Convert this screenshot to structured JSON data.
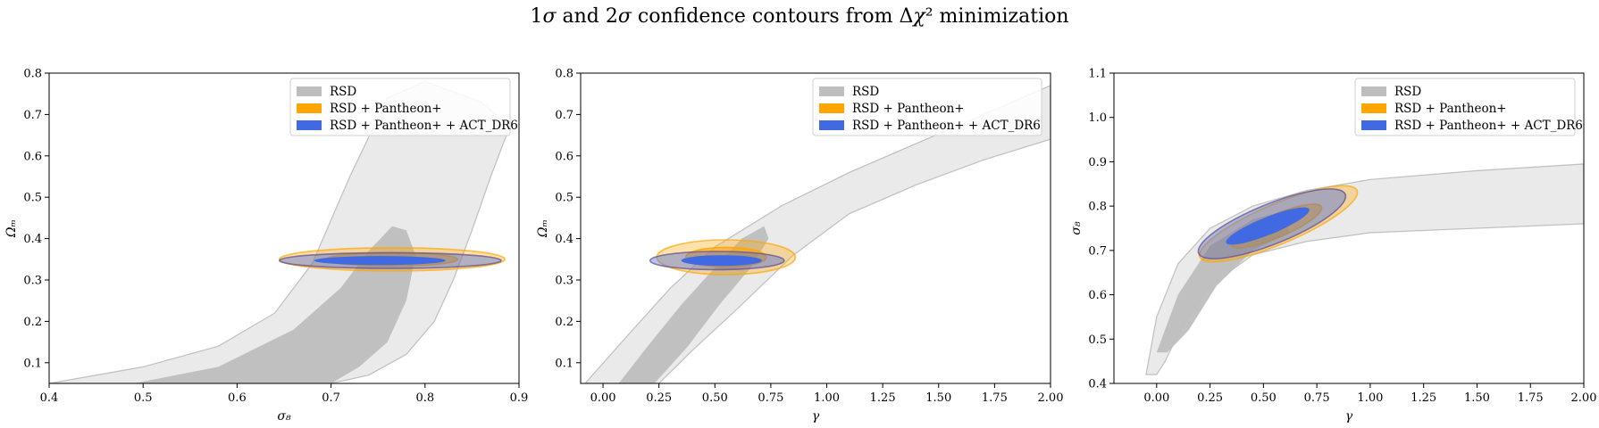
{
  "figure": {
    "title_parts": [
      "1",
      "σ",
      " and 2",
      "σ",
      " confidence contours from Δ",
      "χ",
      "² minimization"
    ]
  },
  "chart_data": [
    {
      "type": "contour",
      "xlabel": "σ₈",
      "ylabel": "Ωₘ",
      "xlim": [
        0.4,
        0.9
      ],
      "ylim": [
        0.05,
        0.8
      ],
      "xticks": [
        "0.4",
        "0.5",
        "0.6",
        "0.7",
        "0.8",
        "0.9"
      ],
      "yticks": [
        "0.1",
        "0.2",
        "0.3",
        "0.4",
        "0.5",
        "0.6",
        "0.7",
        "0.8"
      ],
      "legend": {
        "placement": "upper-right",
        "entries": [
          "RSD",
          "RSD + Pantheon+",
          "RSD + Pantheon+ + ACT_DR6"
        ]
      },
      "series": [
        {
          "name": "RSD",
          "color": "#bebebe",
          "contours": [
            {
              "level": "2sigma",
              "points": [
                [
                  0.4,
                  0.05
                ],
                [
                  0.5,
                  0.09
                ],
                [
                  0.58,
                  0.14
                ],
                [
                  0.64,
                  0.22
                ],
                [
                  0.68,
                  0.34
                ],
                [
                  0.72,
                  0.55
                ],
                [
                  0.76,
                  0.74
                ],
                [
                  0.8,
                  0.78
                ],
                [
                  0.86,
                  0.73
                ],
                [
                  0.89,
                  0.67
                ],
                [
                  0.87,
                  0.55
                ],
                [
                  0.85,
                  0.42
                ],
                [
                  0.83,
                  0.3
                ],
                [
                  0.81,
                  0.2
                ],
                [
                  0.78,
                  0.12
                ],
                [
                  0.74,
                  0.07
                ],
                [
                  0.7,
                  0.05
                ]
              ]
            },
            {
              "level": "1sigma",
              "points": [
                [
                  0.49,
                  0.05
                ],
                [
                  0.58,
                  0.09
                ],
                [
                  0.66,
                  0.18
                ],
                [
                  0.71,
                  0.28
                ],
                [
                  0.74,
                  0.37
                ],
                [
                  0.765,
                  0.43
                ],
                [
                  0.78,
                  0.42
                ],
                [
                  0.79,
                  0.36
                ],
                [
                  0.78,
                  0.25
                ],
                [
                  0.76,
                  0.15
                ],
                [
                  0.73,
                  0.09
                ],
                [
                  0.7,
                  0.05
                ]
              ]
            }
          ]
        },
        {
          "name": "RSD + Pantheon+",
          "color": "#ffa500",
          "ellipses": [
            {
              "level": "2sigma",
              "center": [
                0.765,
                0.35
              ],
              "rx": 0.12,
              "ry": 0.028
            },
            {
              "level": "1sigma",
              "center": [
                0.765,
                0.35
              ],
              "rx": 0.07,
              "ry": 0.016
            }
          ]
        },
        {
          "name": "RSD + Pantheon+ + ACT_DR6",
          "color": "#4169e1",
          "ellipses": [
            {
              "level": "2sigma",
              "center": [
                0.763,
                0.347
              ],
              "rx": 0.118,
              "ry": 0.019
            },
            {
              "level": "1sigma",
              "center": [
                0.752,
                0.347
              ],
              "rx": 0.07,
              "ry": 0.011
            }
          ]
        }
      ]
    },
    {
      "type": "contour",
      "xlabel": "γ",
      "ylabel": "Ωₘ",
      "xlim": [
        -0.1,
        2.0
      ],
      "ylim": [
        0.05,
        0.8
      ],
      "xticks": [
        "0.00",
        "0.25",
        "0.50",
        "0.75",
        "1.00",
        "1.25",
        "1.50",
        "1.75",
        "2.00"
      ],
      "yticks": [
        "0.1",
        "0.2",
        "0.3",
        "0.4",
        "0.5",
        "0.6",
        "0.7",
        "0.8"
      ],
      "legend": {
        "placement": "upper-right",
        "entries": [
          "RSD",
          "RSD + Pantheon+",
          "RSD + Pantheon+ + ACT_DR6"
        ]
      },
      "series": [
        {
          "name": "RSD",
          "color": "#bebebe",
          "contours": [
            {
              "level": "2sigma",
              "points": [
                [
                  -0.08,
                  0.05
                ],
                [
                  0.1,
                  0.16
                ],
                [
                  0.3,
                  0.28
                ],
                [
                  0.5,
                  0.38
                ],
                [
                  0.8,
                  0.48
                ],
                [
                  1.1,
                  0.56
                ],
                [
                  1.4,
                  0.63
                ],
                [
                  1.7,
                  0.7
                ],
                [
                  2.0,
                  0.77
                ],
                [
                  2.0,
                  0.64
                ],
                [
                  1.7,
                  0.59
                ],
                [
                  1.4,
                  0.53
                ],
                [
                  1.1,
                  0.46
                ],
                [
                  0.85,
                  0.36
                ],
                [
                  0.6,
                  0.23
                ],
                [
                  0.4,
                  0.13
                ],
                [
                  0.25,
                  0.05
                ]
              ]
            },
            {
              "level": "1sigma",
              "points": [
                [
                  0.07,
                  0.05
                ],
                [
                  0.2,
                  0.14
                ],
                [
                  0.35,
                  0.24
                ],
                [
                  0.5,
                  0.33
                ],
                [
                  0.62,
                  0.4
                ],
                [
                  0.72,
                  0.43
                ],
                [
                  0.74,
                  0.4
                ],
                [
                  0.66,
                  0.33
                ],
                [
                  0.52,
                  0.24
                ],
                [
                  0.38,
                  0.14
                ],
                [
                  0.23,
                  0.05
                ]
              ]
            }
          ]
        },
        {
          "name": "RSD + Pantheon+",
          "color": "#ffa500",
          "ellipses": [
            {
              "level": "2sigma",
              "center": [
                0.55,
                0.355
              ],
              "rx": 0.31,
              "ry": 0.042
            },
            {
              "level": "1sigma",
              "center": [
                0.55,
                0.355
              ],
              "rx": 0.18,
              "ry": 0.024
            }
          ]
        },
        {
          "name": "RSD + Pantheon+ + ACT_DR6",
          "color": "#4169e1",
          "ellipses": [
            {
              "level": "2sigma",
              "center": [
                0.51,
                0.347
              ],
              "rx": 0.3,
              "ry": 0.022
            },
            {
              "level": "1sigma",
              "center": [
                0.53,
                0.347
              ],
              "rx": 0.18,
              "ry": 0.013
            }
          ]
        }
      ]
    },
    {
      "type": "contour",
      "xlabel": "γ",
      "ylabel": "σ₈",
      "xlim": [
        -0.2,
        2.0
      ],
      "ylim": [
        0.4,
        1.1
      ],
      "xticks": [
        "0.00",
        "0.25",
        "0.50",
        "0.75",
        "1.00",
        "1.25",
        "1.50",
        "1.75",
        "2.00"
      ],
      "yticks": [
        "0.4",
        "0.5",
        "0.6",
        "0.7",
        "0.8",
        "0.9",
        "1.0",
        "1.1"
      ],
      "legend": {
        "placement": "upper-right",
        "entries": [
          "RSD",
          "RSD + Pantheon+",
          "RSD + Pantheon+ + ACT_DR6"
        ]
      },
      "series": [
        {
          "name": "RSD",
          "color": "#bebebe",
          "contours": [
            {
              "level": "2sigma",
              "points": [
                [
                  -0.05,
                  0.42
                ],
                [
                  0.0,
                  0.55
                ],
                [
                  0.1,
                  0.67
                ],
                [
                  0.25,
                  0.75
                ],
                [
                  0.45,
                  0.8
                ],
                [
                  0.7,
                  0.835
                ],
                [
                  1.0,
                  0.86
                ],
                [
                  1.5,
                  0.88
                ],
                [
                  2.0,
                  0.895
                ],
                [
                  2.0,
                  0.76
                ],
                [
                  1.5,
                  0.75
                ],
                [
                  1.0,
                  0.74
                ],
                [
                  0.7,
                  0.72
                ],
                [
                  0.45,
                  0.69
                ],
                [
                  0.25,
                  0.62
                ],
                [
                  0.12,
                  0.53
                ],
                [
                  0.04,
                  0.45
                ],
                [
                  0.0,
                  0.42
                ]
              ]
            },
            {
              "level": "1sigma",
              "points": [
                [
                  0.0,
                  0.47
                ],
                [
                  0.1,
                  0.6
                ],
                [
                  0.25,
                  0.71
                ],
                [
                  0.45,
                  0.77
                ],
                [
                  0.6,
                  0.79
                ],
                [
                  0.62,
                  0.74
                ],
                [
                  0.45,
                  0.7
                ],
                [
                  0.28,
                  0.62
                ],
                [
                  0.15,
                  0.52
                ],
                [
                  0.05,
                  0.47
                ]
              ]
            }
          ]
        },
        {
          "name": "RSD + Pantheon+",
          "color": "#ffa500",
          "ellipses": [
            {
              "level": "2sigma",
              "center": [
                0.57,
                0.76
              ],
              "rx": 0.4,
              "ry": 0.045,
              "angle": 23
            },
            {
              "level": "1sigma",
              "center": [
                0.56,
                0.755
              ],
              "rx": 0.23,
              "ry": 0.026,
              "angle": 23
            }
          ]
        },
        {
          "name": "RSD + Pantheon+ + ACT_DR6",
          "color": "#4169e1",
          "ellipses": [
            {
              "level": "2sigma",
              "center": [
                0.54,
                0.76
              ],
              "rx": 0.37,
              "ry": 0.045,
              "angle": 22
            },
            {
              "level": "1sigma",
              "center": [
                0.52,
                0.755
              ],
              "rx": 0.21,
              "ry": 0.02,
              "angle": 22
            }
          ]
        }
      ]
    }
  ]
}
